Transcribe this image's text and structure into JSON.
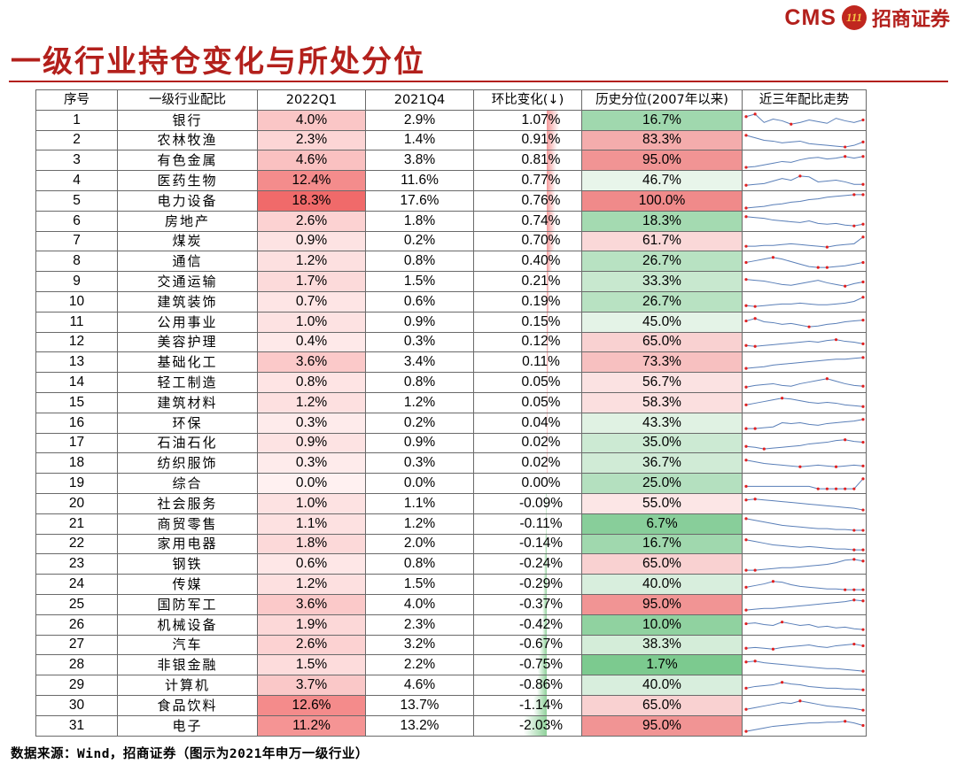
{
  "brand": {
    "latin": "CMS",
    "mark": "111",
    "cn": "招商证券"
  },
  "title": "一级行业持仓变化与所处分位",
  "headers": [
    "序号",
    "一级行业配比",
    "2022Q1",
    "2021Q4",
    "环比变化(↓)",
    "历史分位(2007年以来)",
    "近三年配比走势"
  ],
  "rows": [
    {
      "no": "1",
      "industry": "银行",
      "q1": "4.0%",
      "q4": "2.9%",
      "chg": "1.07%",
      "pct": "16.7%",
      "q1v": 4.0,
      "chgv": 1.07,
      "pctv": 16.7,
      "trend": [
        5,
        2,
        12,
        8,
        10,
        14,
        12,
        9,
        11,
        13,
        7,
        10,
        12,
        9
      ]
    },
    {
      "no": "2",
      "industry": "农林牧渔",
      "q1": "2.3%",
      "q4": "1.4%",
      "chg": "0.91%",
      "pct": "83.3%",
      "q1v": 2.3,
      "chgv": 0.91,
      "pctv": 83.3,
      "trend": [
        3,
        6,
        9,
        10,
        12,
        11,
        10,
        13,
        14,
        15,
        16,
        17,
        15,
        11
      ]
    },
    {
      "no": "3",
      "industry": "有色金属",
      "q1": "4.6%",
      "q4": "3.8%",
      "chg": "0.81%",
      "pct": "95.0%",
      "q1v": 4.6,
      "chgv": 0.81,
      "pctv": 95.0,
      "trend": [
        17,
        16,
        14,
        12,
        10,
        11,
        8,
        6,
        5,
        7,
        6,
        4,
        6,
        4
      ]
    },
    {
      "no": "4",
      "industry": "医药生物",
      "q1": "12.4%",
      "q4": "11.6%",
      "chg": "0.77%",
      "pct": "46.7%",
      "q1v": 12.4,
      "chgv": 0.77,
      "pctv": 46.7,
      "trend": [
        14,
        13,
        12,
        9,
        6,
        8,
        3,
        4,
        10,
        9,
        8,
        10,
        13,
        13
      ]
    },
    {
      "no": "5",
      "industry": "电力设备",
      "q1": "18.3%",
      "q4": "17.6%",
      "chg": "0.76%",
      "pct": "100.0%",
      "q1v": 18.3,
      "chgv": 0.76,
      "pctv": 100.0,
      "trend": [
        18,
        17,
        16,
        14,
        13,
        11,
        10,
        8,
        7,
        5,
        4,
        3,
        2,
        2
      ]
    },
    {
      "no": "6",
      "industry": "房地产",
      "q1": "2.6%",
      "q4": "1.8%",
      "chg": "0.74%",
      "pct": "18.3%",
      "q1v": 2.6,
      "chgv": 0.74,
      "pctv": 18.3,
      "trend": [
        4,
        5,
        6,
        8,
        9,
        10,
        11,
        9,
        12,
        13,
        12,
        14,
        15,
        13
      ]
    },
    {
      "no": "7",
      "industry": "煤炭",
      "q1": "0.9%",
      "q4": "0.2%",
      "chg": "0.70%",
      "pct": "61.7%",
      "q1v": 0.9,
      "chgv": 0.7,
      "pctv": 61.7,
      "trend": [
        15,
        15,
        14,
        14,
        13,
        12,
        13,
        14,
        15,
        16,
        14,
        13,
        12,
        4
      ]
    },
    {
      "no": "8",
      "industry": "通信",
      "q1": "1.2%",
      "q4": "0.8%",
      "chg": "0.40%",
      "pct": "26.7%",
      "q1v": 1.2,
      "chgv": 0.4,
      "pctv": 26.7,
      "trend": [
        10,
        8,
        6,
        4,
        6,
        9,
        12,
        15,
        16,
        16,
        15,
        14,
        12,
        10
      ]
    },
    {
      "no": "9",
      "industry": "交通运输",
      "q1": "1.7%",
      "q4": "1.5%",
      "chg": "0.21%",
      "pct": "33.3%",
      "q1v": 1.7,
      "chgv": 0.21,
      "pctv": 33.3,
      "trend": [
        6,
        7,
        8,
        10,
        12,
        13,
        11,
        9,
        7,
        10,
        12,
        14,
        11,
        9
      ]
    },
    {
      "no": "10",
      "industry": "建筑装饰",
      "q1": "0.7%",
      "q4": "0.6%",
      "chg": "0.19%",
      "pct": "26.7%",
      "q1v": 0.7,
      "chgv": 0.19,
      "pctv": 26.7,
      "trend": [
        14,
        15,
        14,
        13,
        12,
        12,
        11,
        12,
        13,
        13,
        12,
        11,
        9,
        4
      ]
    },
    {
      "no": "11",
      "industry": "公用事业",
      "q1": "1.0%",
      "q4": "0.9%",
      "chg": "0.15%",
      "pct": "45.0%",
      "q1v": 1.0,
      "chgv": 0.15,
      "pctv": 45.0,
      "trend": [
        8,
        5,
        9,
        10,
        12,
        11,
        13,
        15,
        14,
        12,
        11,
        9,
        8,
        7
      ]
    },
    {
      "no": "12",
      "industry": "美容护理",
      "q1": "0.4%",
      "q4": "0.3%",
      "chg": "0.12%",
      "pct": "65.0%",
      "q1v": 0.4,
      "chgv": 0.12,
      "pctv": 65.0,
      "trend": [
        13,
        14,
        13,
        12,
        11,
        10,
        9,
        8,
        9,
        7,
        6,
        8,
        9,
        11
      ]
    },
    {
      "no": "13",
      "industry": "基础化工",
      "q1": "3.6%",
      "q4": "3.4%",
      "chg": "0.11%",
      "pct": "73.3%",
      "q1v": 3.6,
      "chgv": 0.11,
      "pctv": 73.3,
      "trend": [
        16,
        15,
        14,
        12,
        11,
        10,
        9,
        8,
        7,
        6,
        5,
        5,
        4,
        3
      ]
    },
    {
      "no": "14",
      "industry": "轻工制造",
      "q1": "0.8%",
      "q4": "0.8%",
      "chg": "0.05%",
      "pct": "56.7%",
      "q1v": 0.8,
      "chgv": 0.05,
      "pctv": 56.7,
      "trend": [
        14,
        12,
        11,
        10,
        12,
        13,
        10,
        8,
        6,
        4,
        7,
        10,
        12,
        13
      ]
    },
    {
      "no": "15",
      "industry": "建筑材料",
      "q1": "1.2%",
      "q4": "1.2%",
      "chg": "0.05%",
      "pct": "58.3%",
      "q1v": 1.2,
      "chgv": 0.05,
      "pctv": 58.3,
      "trend": [
        12,
        10,
        8,
        6,
        4,
        5,
        7,
        9,
        10,
        9,
        10,
        12,
        13,
        14
      ]
    },
    {
      "no": "16",
      "industry": "环保",
      "q1": "0.3%",
      "q4": "0.2%",
      "chg": "0.04%",
      "pct": "43.3%",
      "q1v": 0.3,
      "chgv": 0.04,
      "pctv": 43.3,
      "trend": [
        16,
        16,
        15,
        14,
        9,
        10,
        9,
        11,
        12,
        10,
        9,
        8,
        7,
        5
      ]
    },
    {
      "no": "17",
      "industry": "石油石化",
      "q1": "0.9%",
      "q4": "0.9%",
      "chg": "0.02%",
      "pct": "35.0%",
      "q1v": 0.9,
      "chgv": 0.02,
      "pctv": 35.0,
      "trend": [
        13,
        14,
        16,
        15,
        14,
        13,
        12,
        10,
        9,
        8,
        6,
        5,
        7,
        8
      ]
    },
    {
      "no": "18",
      "industry": "纺织服饰",
      "q1": "0.3%",
      "q4": "0.3%",
      "chg": "0.02%",
      "pct": "36.7%",
      "q1v": 0.3,
      "chgv": 0.02,
      "pctv": 36.7,
      "trend": [
        5,
        7,
        9,
        10,
        11,
        12,
        13,
        12,
        11,
        12,
        13,
        12,
        11,
        12
      ]
    },
    {
      "no": "19",
      "industry": "综合",
      "q1": "0.0%",
      "q4": "0.0%",
      "chg": "0.00%",
      "pct": "25.0%",
      "q1v": 0.0,
      "chgv": 0.0,
      "pctv": 25.0,
      "trend": [
        12,
        12,
        12,
        12,
        12,
        12,
        12,
        12,
        15,
        15,
        15,
        15,
        15,
        3
      ]
    },
    {
      "no": "20",
      "industry": "社会服务",
      "q1": "1.0%",
      "q4": "1.1%",
      "chg": "-0.09%",
      "pct": "55.0%",
      "q1v": 1.0,
      "chgv": -0.09,
      "pctv": 55.0,
      "trend": [
        5,
        4,
        5,
        6,
        7,
        8,
        9,
        10,
        11,
        12,
        13,
        14,
        15,
        17
      ]
    },
    {
      "no": "21",
      "industry": "商贸零售",
      "q1": "1.1%",
      "q4": "1.2%",
      "chg": "-0.11%",
      "pct": "6.7%",
      "q1v": 1.1,
      "chgv": -0.11,
      "pctv": 6.7,
      "trend": [
        3,
        5,
        7,
        9,
        11,
        12,
        13,
        14,
        15,
        15,
        16,
        16,
        17,
        17
      ]
    },
    {
      "no": "22",
      "industry": "家用电器",
      "q1": "1.8%",
      "q4": "2.0%",
      "chg": "-0.14%",
      "pct": "16.7%",
      "q1v": 1.8,
      "chgv": -0.14,
      "pctv": 16.7,
      "trend": [
        4,
        6,
        8,
        10,
        11,
        12,
        13,
        12,
        13,
        14,
        15,
        15,
        16,
        16
      ]
    },
    {
      "no": "23",
      "industry": "钢铁",
      "q1": "0.6%",
      "q4": "0.8%",
      "chg": "-0.24%",
      "pct": "65.0%",
      "q1v": 0.6,
      "chgv": -0.24,
      "pctv": 65.0,
      "trend": [
        16,
        16,
        15,
        14,
        13,
        13,
        12,
        11,
        10,
        9,
        7,
        4,
        3,
        5
      ]
    },
    {
      "no": "24",
      "industry": "传媒",
      "q1": "1.2%",
      "q4": "1.5%",
      "chg": "-0.29%",
      "pct": "40.0%",
      "q1v": 1.2,
      "chgv": -0.29,
      "pctv": 40.0,
      "trend": [
        12,
        10,
        8,
        5,
        6,
        9,
        11,
        12,
        13,
        14,
        14,
        15,
        15,
        15
      ]
    },
    {
      "no": "25",
      "industry": "国防军工",
      "q1": "3.6%",
      "q4": "4.0%",
      "chg": "-0.37%",
      "pct": "95.0%",
      "q1v": 3.6,
      "chgv": -0.37,
      "pctv": 95.0,
      "trend": [
        16,
        15,
        14,
        14,
        13,
        12,
        11,
        10,
        9,
        8,
        7,
        6,
        4,
        5
      ]
    },
    {
      "no": "26",
      "industry": "机械设备",
      "q1": "1.9%",
      "q4": "2.3%",
      "chg": "-0.42%",
      "pct": "10.0%",
      "q1v": 1.9,
      "chgv": -0.42,
      "pctv": 10.0,
      "trend": [
        8,
        7,
        9,
        10,
        6,
        8,
        10,
        9,
        12,
        11,
        13,
        12,
        14,
        15
      ]
    },
    {
      "no": "27",
      "industry": "汽车",
      "q1": "2.6%",
      "q4": "3.2%",
      "chg": "-0.67%",
      "pct": "38.3%",
      "q1v": 2.6,
      "chgv": -0.67,
      "pctv": 38.3,
      "trend": [
        13,
        12,
        13,
        14,
        12,
        11,
        10,
        9,
        11,
        12,
        10,
        9,
        8,
        10
      ]
    },
    {
      "no": "28",
      "industry": "非银金融",
      "q1": "1.5%",
      "q4": "2.2%",
      "chg": "-0.75%",
      "pct": "1.7%",
      "q1v": 1.5,
      "chgv": -0.75,
      "pctv": 1.7,
      "trend": [
        5,
        4,
        6,
        7,
        8,
        9,
        10,
        11,
        12,
        13,
        13,
        14,
        15,
        16
      ]
    },
    {
      "no": "29",
      "industry": "计算机",
      "q1": "3.7%",
      "q4": "4.6%",
      "chg": "-0.86%",
      "pct": "40.0%",
      "q1v": 3.7,
      "chgv": -0.86,
      "pctv": 40.0,
      "trend": [
        12,
        10,
        9,
        8,
        5,
        7,
        8,
        10,
        11,
        12,
        12,
        13,
        13,
        14
      ]
    },
    {
      "no": "30",
      "industry": "食品饮料",
      "q1": "12.6%",
      "q4": "13.7%",
      "chg": "-1.14%",
      "pct": "65.0%",
      "q1v": 12.6,
      "chgv": -1.14,
      "pctv": 65.0,
      "trend": [
        14,
        12,
        10,
        8,
        6,
        7,
        4,
        6,
        8,
        10,
        11,
        12,
        13,
        15
      ]
    },
    {
      "no": "31",
      "industry": "电子",
      "q1": "11.2%",
      "q4": "13.2%",
      "chg": "-2.03%",
      "pct": "95.0%",
      "q1v": 11.2,
      "chgv": -2.03,
      "pctv": 95.0,
      "trend": [
        16,
        14,
        12,
        10,
        9,
        8,
        7,
        6,
        6,
        5,
        5,
        4,
        6,
        9
      ]
    }
  ],
  "source": "数据来源：Wind，招商证券（图示为2021年申万一级行业）",
  "colors": {
    "accent": "#b3201c",
    "pct_high": "#f08a8a",
    "pct_low": "#78c88c",
    "trend_line": "#5a7fb8",
    "trend_marker": "#e02020"
  }
}
